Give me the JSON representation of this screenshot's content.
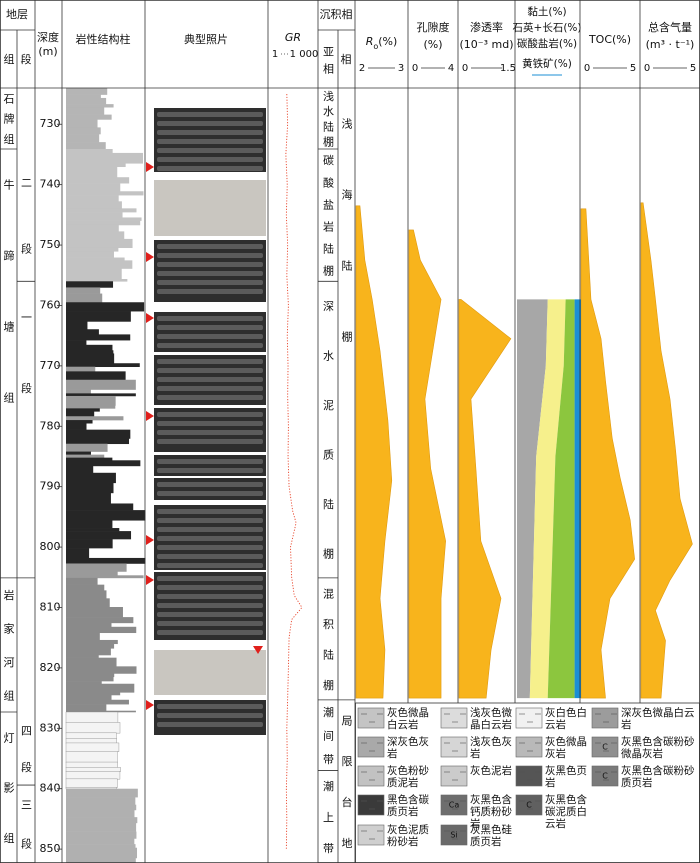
{
  "header": {
    "strata": "地层",
    "formation": "组",
    "member": "段",
    "depth": "深度",
    "depth_unit": "(m)",
    "lithology": "岩性结构柱",
    "photos": "典型照片",
    "facies": "沉积相",
    "subfacies": "亚相",
    "facies_col": "相"
  },
  "depth": {
    "lim": [
      724,
      852.3
    ],
    "ticks": [
      730,
      740,
      750,
      760,
      770,
      780,
      790,
      800,
      810,
      820,
      830,
      840,
      850
    ]
  },
  "formations": [
    {
      "name": "石牌组",
      "top": 724,
      "base": 734.1
    },
    {
      "name": "牛蹄塘组",
      "top": 734.1,
      "base": 805.1
    },
    {
      "name": "岩家河组",
      "top": 805.1,
      "base": 827.3
    },
    {
      "name": "灯影组",
      "top": 827.3,
      "base": 852.3
    }
  ],
  "members": [
    {
      "name": "二段",
      "top": 734.1,
      "base": 756
    },
    {
      "name": "一段",
      "top": 756,
      "base": 805.1
    },
    {
      "name": "四段",
      "top": 827.3,
      "base": 839.4
    },
    {
      "name": "三段",
      "top": 839.4,
      "base": 852.3
    }
  ],
  "subfacies": [
    {
      "name": "浅水陆棚",
      "top": 724,
      "base": 734.1
    },
    {
      "name": "碳酸盐岩陆棚",
      "top": 734.1,
      "base": 756
    },
    {
      "name": "深水泥质陆棚",
      "top": 756,
      "base": 805.1
    },
    {
      "name": "混积陆棚",
      "top": 805.1,
      "base": 825.3
    },
    {
      "name": "潮间带",
      "top": 825.3,
      "base": 837
    },
    {
      "name": "潮上带",
      "top": 837,
      "base": 852.3
    }
  ],
  "facies": [
    {
      "name": "浅海陆棚",
      "top": 724,
      "base": 825.3
    },
    {
      "name": "局限台地",
      "top": 825.3,
      "base": 852.3
    }
  ],
  "gr": {
    "label": "GR",
    "lim": [
      1,
      1000
    ],
    "ticks": [
      1,
      {
        "value": 1000,
        "label": "1 000"
      }
    ],
    "log": true,
    "color": "#e8442a",
    "depths": [
      725,
      730,
      735,
      740,
      745,
      750,
      755,
      760,
      765,
      770,
      775,
      780,
      785,
      790,
      794,
      796,
      800,
      805,
      808,
      810,
      812,
      815,
      820,
      825,
      830,
      835,
      840,
      845,
      850
    ],
    "values": [
      14,
      16,
      12,
      15,
      13,
      16,
      14,
      18,
      15,
      17,
      16,
      18,
      17,
      20,
      35,
      60,
      25,
      30,
      45,
      150,
      30,
      20,
      18,
      16,
      14,
      15,
      13,
      14,
      13
    ]
  },
  "ro": {
    "label": "R",
    "sub": "o",
    "unit": "(%)",
    "lim": [
      2,
      3
    ],
    "ticks": [
      2,
      3
    ],
    "color": "#f8b41c",
    "depths": [
      743.5,
      752.5,
      759,
      767.5,
      779,
      789,
      799,
      808.5,
      817,
      825
    ],
    "values": [
      2.06,
      2.16,
      2.31,
      2.47,
      2.63,
      2.71,
      2.57,
      2.47,
      2.57,
      2.53
    ]
  },
  "porosity": {
    "label": "孔隙度",
    "unit": "(%)",
    "lim": [
      0,
      4
    ],
    "ticks": [
      0,
      4
    ],
    "color": "#f8b41c",
    "depths": [
      747.5,
      752.5,
      759,
      775.5,
      787,
      799,
      808.5,
      825
    ],
    "values": [
      0.3,
      0.9,
      2.7,
      1.3,
      1.8,
      3.1,
      2.7,
      2.7
    ]
  },
  "permeability": {
    "label": "渗透率",
    "unit": "(10⁻³ md)",
    "lim": [
      0,
      1.5
    ],
    "ticks": [
      0,
      1.5
    ],
    "color": "#f8b41c",
    "depths": [
      759,
      765.5,
      775.5,
      787,
      799,
      808.5,
      817,
      825
    ],
    "values": [
      0.03,
      1.44,
      0.31,
      0.45,
      0.59,
      1.16,
      0.88,
      0.74
    ]
  },
  "minerals": {
    "lim": [
      0,
      100
    ],
    "depths": [
      759,
      770,
      785,
      825
    ],
    "series": [
      {
        "name": "黏土(%)",
        "color": "#a7a7a7",
        "values": [
          48,
          45,
          30,
          20
        ]
      },
      {
        "name": "石英+长石(%)",
        "color": "#f6f08c",
        "values": [
          28,
          28,
          30,
          28
        ]
      },
      {
        "name": "碳酸盐岩(%)",
        "color": "#8cc63e",
        "values": [
          14,
          17,
          30,
          42
        ]
      },
      {
        "name": "黄铁矿(%)",
        "color": "#1b8fd4",
        "values": [
          10,
          10,
          10,
          10
        ]
      }
    ]
  },
  "toc": {
    "label": "TOC(%)",
    "lim": [
      0,
      5
    ],
    "ticks": [
      0,
      5
    ],
    "color": "#f8b41c",
    "depths": [
      744,
      759,
      765.5,
      772.5,
      782,
      788.5,
      795.5,
      802,
      808.5,
      817,
      825
    ],
    "values": [
      0.35,
      0.8,
      1.7,
      2.1,
      2.7,
      3.4,
      4.3,
      4.7,
      2.5,
      1.7,
      2.1
    ]
  },
  "gas": {
    "label": "总含气量",
    "unit": "(m³ · t⁻¹)",
    "lim": [
      0,
      5
    ],
    "ticks": [
      0,
      5
    ],
    "color": "#f8b41c",
    "depths": [
      743,
      752.5,
      759,
      767.5,
      775.5,
      784,
      792,
      799.5,
      805.5,
      810.5,
      815.5,
      825
    ],
    "values": [
      0.1,
      0.8,
      1.2,
      1.7,
      2.5,
      3.0,
      3.4,
      4.5,
      2.5,
      1.2,
      2.1,
      1.7
    ]
  },
  "legend": [
    {
      "name": "灰色微晶白云岩",
      "fill": "#c4c4c4"
    },
    {
      "name": "浅灰色微晶白云岩",
      "fill": "#dcdcdc"
    },
    {
      "name": "灰白色白云岩",
      "fill": "#f1f1f1"
    },
    {
      "name": "深灰色微晶白云岩",
      "fill": "#9c9c9c"
    },
    {
      "name": "深灰色灰岩",
      "fill": "#a9a9a9"
    },
    {
      "name": "浅灰色灰岩",
      "fill": "#d6d6d6"
    },
    {
      "name": "灰色微晶灰岩",
      "fill": "#b9b9b9"
    },
    {
      "name": "灰黑色含碳粉砂微晶灰岩",
      "fill": "#8f8f8f",
      "symbol": "C"
    },
    {
      "name": "灰色粉砂质泥岩",
      "fill": "#c2c2c2"
    },
    {
      "name": "灰色泥岩",
      "fill": "#cbcbcb"
    },
    {
      "name": "灰黑色页岩",
      "fill": "#555555"
    },
    {
      "name": "灰黑色含碳粉砂质页岩",
      "fill": "#7a7a7a",
      "symbol": "C"
    },
    {
      "name": "黑色含碳质页岩",
      "fill": "#3a3a3a"
    },
    {
      "name": "灰黑色含钙质粉砂岩",
      "fill": "#6e6e6e",
      "symbol": "Ca"
    },
    {
      "name": "灰黑色含碳泥质白云岩",
      "fill": "#606060",
      "symbol": "C"
    },
    {
      "name": "灰色泥质粉砂岩",
      "fill": "#cfcfcf"
    },
    {
      "name": "灰黑色硅质页岩",
      "fill": "#6a6a6a",
      "symbol": "Si"
    }
  ]
}
